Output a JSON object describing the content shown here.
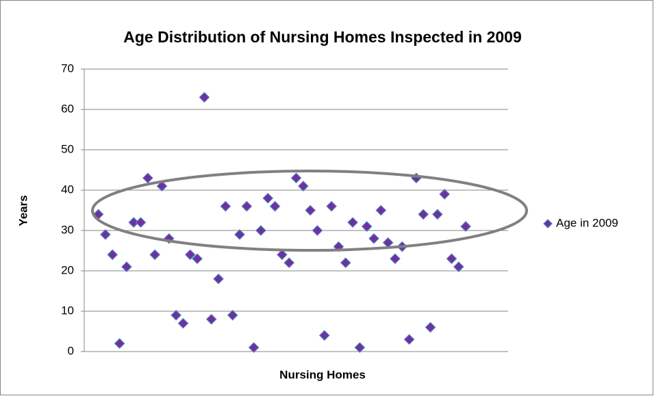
{
  "chart_data": {
    "type": "scatter",
    "title": "Age Distribution of Nursing Homes Inspected in 2009",
    "x_label": "Nursing Homes",
    "y_label": "Years",
    "x": [
      1,
      2,
      3,
      4,
      5,
      6,
      7,
      8,
      9,
      10,
      11,
      12,
      13,
      14,
      15,
      16,
      17,
      18,
      19,
      20,
      21,
      22,
      23,
      24,
      25,
      26,
      27,
      28,
      29,
      30,
      31,
      32,
      33,
      34,
      35,
      36,
      37,
      38,
      39,
      40,
      41,
      42,
      43,
      44,
      45,
      46,
      47,
      48,
      49,
      50,
      51,
      52,
      53
    ],
    "series": [
      {
        "name": "Age in 2009",
        "color": "#7030a0",
        "edge_color": "#4f81bd",
        "values": [
          34,
          29,
          24,
          2,
          21,
          32,
          32,
          43,
          24,
          41,
          28,
          9,
          7,
          24,
          23,
          63,
          8,
          18,
          36,
          9,
          29,
          36,
          1,
          30,
          38,
          36,
          24,
          22,
          43,
          41,
          35,
          30,
          4,
          36,
          26,
          22,
          32,
          1,
          31,
          28,
          35,
          27,
          23,
          26,
          3,
          43,
          34,
          6,
          34,
          39,
          23,
          21,
          31
        ]
      }
    ],
    "xlim": [
      -1,
      59
    ],
    "ylim": [
      0,
      70
    ],
    "yticks": [
      0,
      10,
      20,
      30,
      40,
      50,
      60,
      70
    ],
    "grid": true,
    "legend": "right"
  }
}
